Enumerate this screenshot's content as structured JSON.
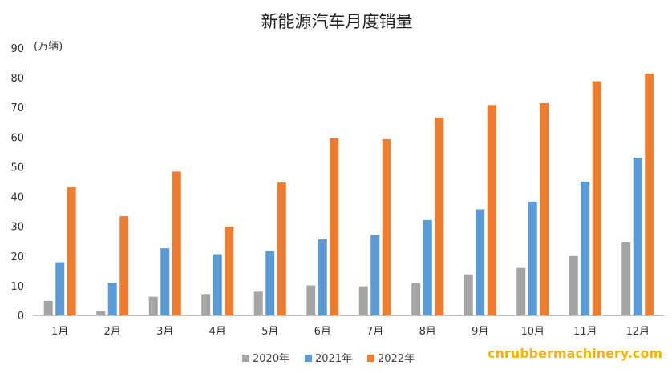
{
  "chart_data": {
    "type": "bar",
    "title": "新能源汽车月度销量",
    "unit_label": "(万辆)",
    "ylim": [
      0,
      90
    ],
    "yticks": [
      0,
      10,
      20,
      30,
      40,
      50,
      60,
      70,
      80,
      90
    ],
    "categories": [
      "1月",
      "2月",
      "3月",
      "4月",
      "5月",
      "6月",
      "7月",
      "8月",
      "9月",
      "10月",
      "11月",
      "12月"
    ],
    "series": [
      {
        "name": "2020年",
        "color": "#a5a5a5",
        "values": [
          4.9,
          1.4,
          6.3,
          7.2,
          8.0,
          10.1,
          9.8,
          10.9,
          13.8,
          16.0,
          20.0,
          24.8
        ]
      },
      {
        "name": "2021年",
        "color": "#5b9bd5",
        "values": [
          17.9,
          11.0,
          22.6,
          20.6,
          21.7,
          25.6,
          27.1,
          32.1,
          35.7,
          38.3,
          45.0,
          53.1
        ]
      },
      {
        "name": "2022年",
        "color": "#ed7d31",
        "values": [
          43.1,
          33.4,
          48.4,
          29.9,
          44.7,
          59.6,
          59.3,
          66.6,
          70.8,
          71.4,
          78.8,
          81.4
        ]
      }
    ],
    "grid": false,
    "legend_position": "bottom"
  },
  "watermark": "cnrubbermachinery.com"
}
